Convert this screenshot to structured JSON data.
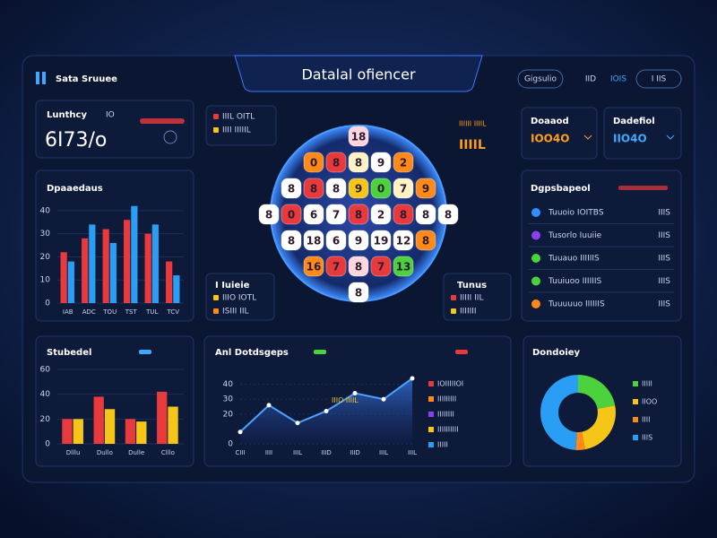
{
  "ui": {
    "brand": "Sata Sruuee",
    "title": "Datalal ofiencer",
    "nav": [
      "Gigsulio",
      "IID",
      "IOIS",
      "I IIS"
    ],
    "stat_card": {
      "title": "Lunthcy",
      "tag": "IO",
      "value": "6I73/o"
    },
    "key_a": [
      {
        "label": "IIIL OITL",
        "color": "#e8393c"
      },
      {
        "label": "IIII IIIIIL",
        "color": "#f5c518"
      }
    ],
    "key_b": {
      "title": "I Iuieie",
      "items": [
        {
          "label": "IIIO IOTL",
          "color": "#f5c518"
        },
        {
          "label": "ISIII IIL",
          "color": "#ff8a1a"
        }
      ]
    },
    "key_c": {
      "title": "IIIIII IIIIL",
      "value": "IIIIL"
    },
    "key_d": {
      "title": "Tunus",
      "items": [
        {
          "label": "IIIII IIL",
          "color": "#e8393c"
        },
        {
          "label": "IIIIIII",
          "color": "#f5c518"
        }
      ]
    },
    "cards": [
      {
        "title": "Doaaod",
        "value": "IOO4O",
        "color": "#ff9f1a"
      },
      {
        "title": "Dadefiol",
        "value": "IIO4O",
        "color": "#3fa9ff"
      }
    ],
    "list": {
      "title": "Dgpsbapeol",
      "items": [
        {
          "label": "Tuuoio IOITBS",
          "value": "IIIS",
          "color": "#2f8fff"
        },
        {
          "label": "Tusorlo Iuuiie",
          "value": "IIIS",
          "color": "#8a3ff0"
        },
        {
          "label": "Tuuauo IIIIIIS",
          "value": "IIIS",
          "color": "#4bd23c"
        },
        {
          "label": "Tuuiuoo IIIIIIS",
          "value": "IIIS",
          "color": "#4bd23c"
        },
        {
          "label": "Tuuuuuo IIIIIIS",
          "value": "IIIS",
          "color": "#ff8a1a"
        }
      ]
    },
    "ball_grid": {
      "rows": [
        [
          {
            "label": "18",
            "color": "#ffd6e0"
          }
        ],
        [
          {
            "label": "0",
            "color": "#ff8a1a"
          },
          {
            "label": "8",
            "color": "#e8393c"
          },
          {
            "label": "8",
            "color": "#fff2c4"
          },
          {
            "label": "9",
            "color": "#ffffff"
          },
          {
            "label": "2",
            "color": "#ff8a1a"
          }
        ],
        [
          {
            "label": "8",
            "color": "#ffffff"
          },
          {
            "label": "8",
            "color": "#e8393c"
          },
          {
            "label": "8",
            "color": "#ffffff"
          },
          {
            "label": "9",
            "color": "#f5c518"
          },
          {
            "label": "0",
            "color": "#4bd23c"
          },
          {
            "label": "7",
            "color": "#fff2c4"
          },
          {
            "label": "9",
            "color": "#ff8a1a"
          }
        ],
        [
          {
            "label": "8",
            "color": "#ffffff"
          },
          {
            "label": "0",
            "color": "#e8393c"
          },
          {
            "label": "6",
            "color": "#ffffff"
          },
          {
            "label": "7",
            "color": "#ffffff"
          },
          {
            "label": "8",
            "color": "#e8393c"
          },
          {
            "label": "2",
            "color": "#ffffff"
          },
          {
            "label": "8",
            "color": "#e8393c"
          },
          {
            "label": "8",
            "color": "#ffffff"
          },
          {
            "label": "8",
            "color": "#ffffff"
          }
        ],
        [
          {
            "label": "8",
            "color": "#ffffff"
          },
          {
            "label": "18",
            "color": "#ffffff"
          },
          {
            "label": "6",
            "color": "#ffffff"
          },
          {
            "label": "9",
            "color": "#ffffff"
          },
          {
            "label": "19",
            "color": "#ffffff"
          },
          {
            "label": "12",
            "color": "#ffffff"
          },
          {
            "label": "8",
            "color": "#ff8a1a"
          }
        ],
        [
          {
            "label": "16",
            "color": "#ff8a1a"
          },
          {
            "label": "7",
            "color": "#e8393c"
          },
          {
            "label": "8",
            "color": "#ffd6e0"
          },
          {
            "label": "7",
            "color": "#e8393c"
          },
          {
            "label": "13",
            "color": "#4bd23c"
          }
        ],
        [
          {
            "label": "8",
            "color": "#ffffff"
          }
        ]
      ]
    }
  },
  "chart_data": [
    {
      "type": "bar",
      "title": "Dpaaedaus",
      "categories": [
        "IAB",
        "ADC",
        "TOU",
        "TST",
        "TUL",
        "TCV"
      ],
      "series": [
        {
          "color": "#e8393c",
          "values": [
            22,
            28,
            32,
            36,
            30,
            18
          ]
        },
        {
          "color": "#2a9df4",
          "values": [
            18,
            34,
            26,
            42,
            34,
            12
          ]
        }
      ],
      "ylim": [
        0,
        45
      ],
      "yticks": [
        0,
        10,
        20,
        30,
        40
      ]
    },
    {
      "type": "bar",
      "title": "Stubedel",
      "categories": [
        "Dlllu",
        "Dullo",
        "Dulle",
        "Clllo"
      ],
      "series": [
        {
          "color": "#e8393c",
          "values": [
            20,
            38,
            20,
            42
          ]
        },
        {
          "color": "#f5c518",
          "values": [
            20,
            28,
            18,
            30
          ]
        }
      ],
      "ylim": [
        0,
        60
      ],
      "yticks": [
        0,
        20,
        40,
        60
      ]
    },
    {
      "type": "line",
      "title": "Anl Dotdsgeps",
      "annotation": "IIIO IIIIL",
      "categories": [
        "CIII",
        "IIII",
        "IIIL",
        "IIID",
        "IIID",
        "IIIL",
        "IIIL"
      ],
      "values": [
        8,
        26,
        14,
        22,
        34,
        30,
        44
      ],
      "color": "#4da3ff",
      "ylim": [
        0,
        50
      ],
      "yticks": [
        0,
        20,
        30,
        40
      ],
      "legend": [
        {
          "label": "IOIIIIIOI",
          "color": "#e8393c"
        },
        {
          "label": "IIIIIIIII",
          "color": "#ff8a1a"
        },
        {
          "label": "IIIIIIII",
          "color": "#8a3ff0"
        },
        {
          "label": "IIIIIIIIII",
          "color": "#f5c518"
        },
        {
          "label": "IIIII",
          "color": "#2a9df4"
        }
      ]
    },
    {
      "type": "pie",
      "title": "Dondoiey",
      "categories": [
        "IIIII",
        "IIOO",
        "IIII",
        "IIIS"
      ],
      "values": [
        22,
        25,
        4,
        49
      ],
      "colors": [
        "#4bd23c",
        "#f5c518",
        "#ff8a1a",
        "#2a9df4"
      ]
    }
  ]
}
